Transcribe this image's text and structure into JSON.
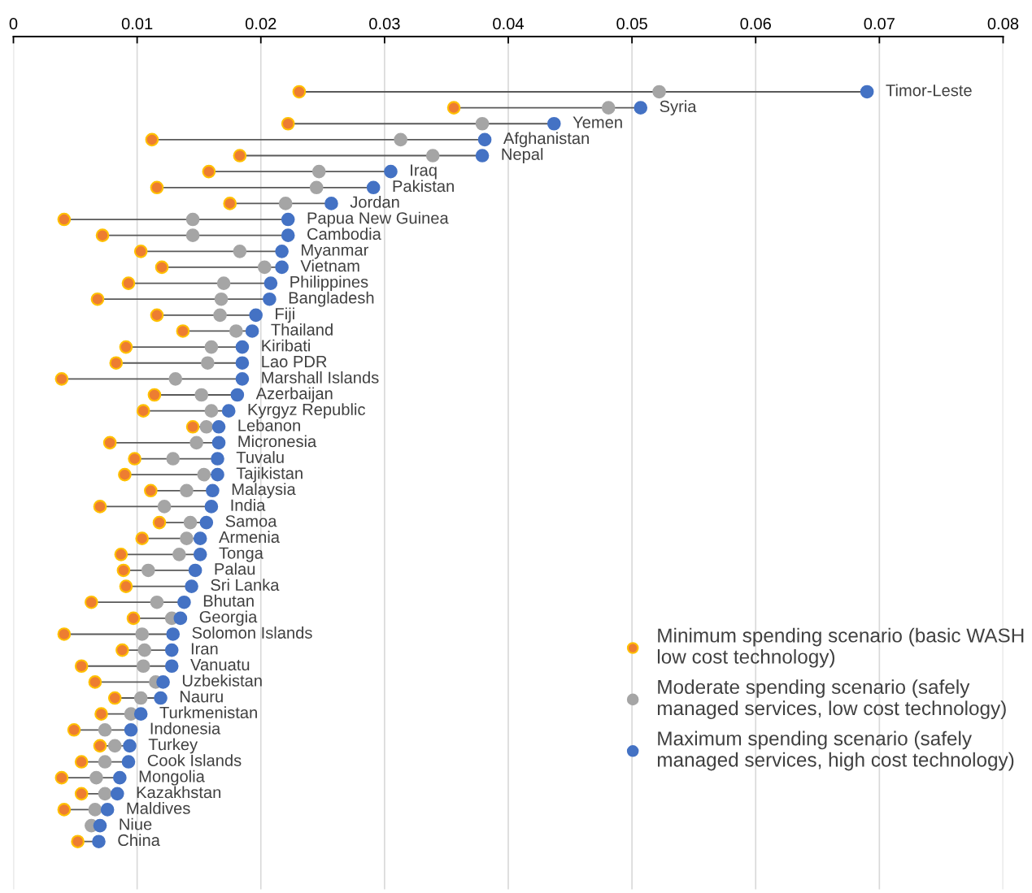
{
  "chart_data": {
    "type": "scatter",
    "categories": [
      "Timor-Leste",
      "Syria",
      "Yemen",
      "Afghanistan",
      "Nepal",
      "Iraq",
      "Pakistan",
      "Jordan",
      "Papua New Guinea",
      "Cambodia",
      "Myanmar",
      "Vietnam",
      "Philippines",
      "Bangladesh",
      "Fiji",
      "Thailand",
      "Kiribati",
      "Lao PDR",
      "Marshall Islands",
      "Azerbaijan",
      "Kyrgyz Republic",
      "Lebanon",
      "Micronesia",
      "Tuvalu",
      "Tajikistan",
      "Malaysia",
      "India",
      "Samoa",
      "Armenia",
      "Tonga",
      "Palau",
      "Sri Lanka",
      "Bhutan",
      "Georgia",
      "Solomon Islands",
      "Iran",
      "Vanuatu",
      "Uzbekistan",
      "Nauru",
      "Turkmenistan",
      "Indonesia",
      "Turkey",
      "Cook Islands",
      "Mongolia",
      "Kazakhstan",
      "Maldives",
      "Niue",
      "China"
    ],
    "orientation": "horizontal",
    "series": [
      {
        "name": "Minimum spending scenario (basic WASH\nlow cost technology)",
        "color": "#ed7d31",
        "values": [
          0.0231,
          0.0356,
          0.0222,
          0.0112,
          0.0183,
          0.0158,
          0.0116,
          0.0175,
          0.0041,
          0.0072,
          0.0103,
          0.012,
          0.0093,
          0.0068,
          0.0116,
          0.0137,
          0.0091,
          0.0083,
          0.0039,
          0.0114,
          0.0105,
          0.0145,
          0.0078,
          0.0098,
          0.009,
          0.0111,
          0.007,
          0.0118,
          0.0104,
          0.0087,
          0.0089,
          0.0091,
          0.0063,
          0.0097,
          0.0041,
          0.0088,
          0.0055,
          0.0066,
          0.0082,
          0.0071,
          0.0049,
          0.007,
          0.0055,
          0.0039,
          0.0055,
          0.0041,
          null,
          0.0052
        ]
      },
      {
        "name": "Moderate spending scenario (safely\nmanaged services, low cost technology)",
        "color": "#a5a5a5",
        "values": [
          0.0522,
          0.0481,
          0.0379,
          0.0313,
          0.0339,
          0.0247,
          0.0245,
          0.022,
          0.0145,
          0.0145,
          0.0183,
          0.0203,
          0.017,
          0.0168,
          0.0167,
          0.018,
          0.016,
          0.0157,
          0.0131,
          0.0152,
          0.016,
          0.0156,
          0.0148,
          0.0129,
          0.0154,
          0.014,
          0.0122,
          0.0143,
          0.014,
          0.0134,
          0.0109,
          null,
          0.0116,
          0.0128,
          0.0104,
          0.0106,
          0.0105,
          0.0115,
          0.0103,
          0.0095,
          0.0074,
          0.0082,
          0.0074,
          0.0067,
          0.0074,
          0.0066,
          0.0063,
          null
        ]
      },
      {
        "name": "Maximum spending scenario (safely\nmanaged services, high cost technology)",
        "color": "#4472c4",
        "values": [
          0.069,
          0.0507,
          0.0437,
          0.0381,
          0.0379,
          0.0305,
          0.0291,
          0.0257,
          0.0222,
          0.0222,
          0.0217,
          0.0217,
          0.0208,
          0.0207,
          0.0196,
          0.0193,
          0.0185,
          0.0185,
          0.0185,
          0.0181,
          0.0174,
          0.0166,
          0.0166,
          0.0165,
          0.0165,
          0.0161,
          0.016,
          0.0156,
          0.0151,
          0.0151,
          0.0147,
          0.0144,
          0.0138,
          0.0135,
          0.0129,
          0.0128,
          0.0128,
          0.0121,
          0.0119,
          0.0103,
          0.0095,
          0.0094,
          0.0093,
          0.0086,
          0.0084,
          0.0076,
          0.007,
          0.0069
        ]
      }
    ],
    "xlim": [
      0,
      0.08
    ],
    "xticks": [
      0,
      0.01,
      0.02,
      0.03,
      0.04,
      0.05,
      0.06,
      0.07,
      0.08
    ],
    "grid": "x",
    "legend": "bottom right",
    "marker": "circle"
  }
}
